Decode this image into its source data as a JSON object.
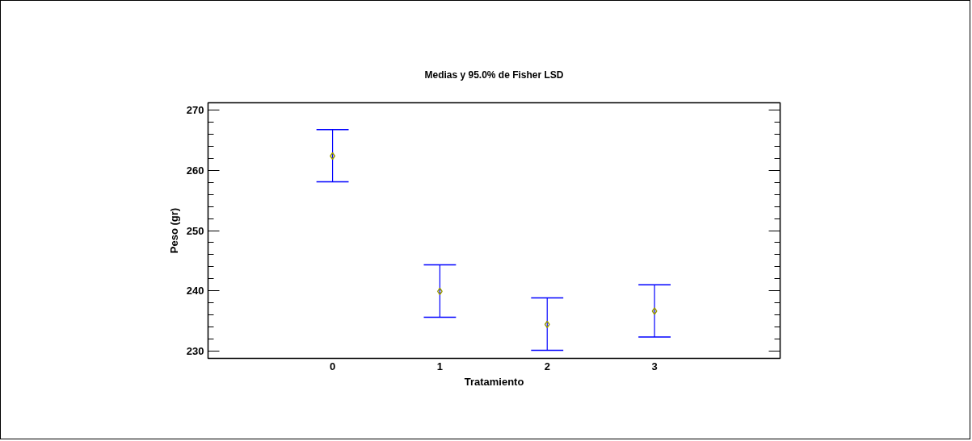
{
  "chart_data": {
    "type": "scatter",
    "title": "Medias y 95.0% de Fisher LSD",
    "xlabel": "Tratamiento",
    "ylabel": "Peso (gr)",
    "x": [
      0,
      1,
      2,
      3
    ],
    "xlim": [
      -1.16,
      4.17
    ],
    "xticks": [
      0,
      1,
      2,
      3
    ],
    "ylim": [
      228.75,
      271.25
    ],
    "yticks": [
      230,
      240,
      250,
      260,
      270
    ],
    "series": [
      {
        "color": "#999900",
        "values": [
          262.4,
          239.9,
          234.4,
          236.6
        ],
        "errors": [
          [
            258.1,
            266.8
          ],
          [
            235.6,
            244.3
          ],
          [
            230.1,
            238.8
          ],
          [
            232.3,
            241.0
          ]
        ]
      }
    ],
    "marker": "diamond",
    "grid": false
  }
}
